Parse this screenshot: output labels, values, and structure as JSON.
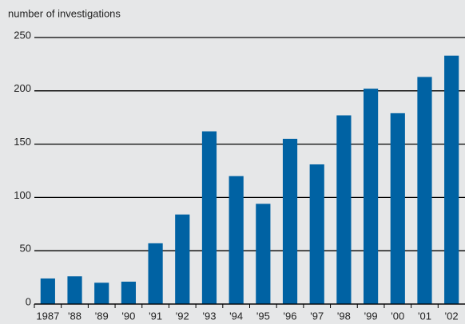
{
  "chart_data": {
    "type": "bar",
    "ylabel": "number of investigations",
    "categories": [
      "1987",
      "'88",
      "'89",
      "'90",
      "'91",
      "'92",
      "'93",
      "'94",
      "'95",
      "'96",
      "'97",
      "'98",
      "'99",
      "'00",
      "'01",
      "'02"
    ],
    "values": [
      24,
      26,
      20,
      21,
      57,
      84,
      162,
      120,
      94,
      155,
      131,
      177,
      202,
      179,
      213,
      233
    ],
    "color": "#0062a3",
    "ylim": [
      0,
      250
    ],
    "yticks": [
      0,
      50,
      100,
      150,
      200,
      250
    ],
    "grid": true
  }
}
